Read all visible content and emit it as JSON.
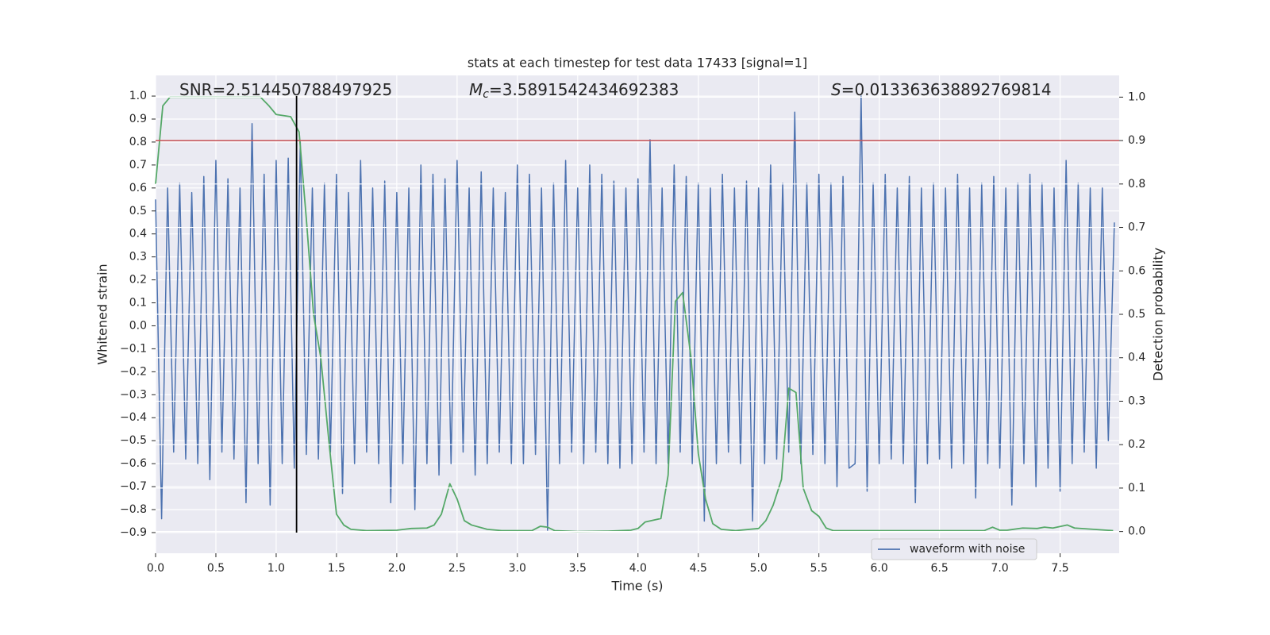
{
  "chart_data": {
    "type": "line",
    "title": "stats at each timestep for test data 17433 [signal=1]",
    "xlabel": "Time (s)",
    "ylabel": "Whitened strain",
    "y2label": "Detection probability",
    "annotations": [
      {
        "text": "SNR=2.514450788497925"
      },
      {
        "symbol": "M",
        "subscript": "c",
        "text": "=3.5891542434692383"
      },
      {
        "symbol": "S",
        "text": "=0.013363638892769814"
      }
    ],
    "background": "#eaeaf2",
    "grid": true,
    "legend": "lower right",
    "xlim": [
      0,
      7.99
    ],
    "ylim": [
      -0.99,
      1.09
    ],
    "y2lim": [
      -0.05,
      1.05
    ],
    "xticks": [
      {
        "value": 0,
        "label": "0.0"
      },
      {
        "value": 0.5,
        "label": "0.5"
      },
      {
        "value": 1,
        "label": "1.0"
      },
      {
        "value": 1.5,
        "label": "1.5"
      },
      {
        "value": 2,
        "label": "2.0"
      },
      {
        "value": 2.5,
        "label": "2.5"
      },
      {
        "value": 3,
        "label": "3.0"
      },
      {
        "value": 3.5,
        "label": "3.5"
      },
      {
        "value": 4,
        "label": "4.0"
      },
      {
        "value": 4.5,
        "label": "4.5"
      },
      {
        "value": 5,
        "label": "5.0"
      },
      {
        "value": 5.5,
        "label": "5.5"
      },
      {
        "value": 6,
        "label": "6.0"
      },
      {
        "value": 6.5,
        "label": "6.5"
      },
      {
        "value": 7,
        "label": "7.0"
      },
      {
        "value": 7.5,
        "label": "7.5"
      }
    ],
    "yticks": [
      {
        "value": -0.9,
        "label": "−0.9"
      },
      {
        "value": -0.8,
        "label": "−0.8"
      },
      {
        "value": -0.7,
        "label": "−0.7"
      },
      {
        "value": -0.6,
        "label": "−0.6"
      },
      {
        "value": -0.5,
        "label": "−0.5"
      },
      {
        "value": -0.4,
        "label": "−0.4"
      },
      {
        "value": -0.3,
        "label": "−0.3"
      },
      {
        "value": -0.2,
        "label": "−0.2"
      },
      {
        "value": -0.1,
        "label": "−0.1"
      },
      {
        "value": 0,
        "label": "0.0"
      },
      {
        "value": 0.1,
        "label": "0.1"
      },
      {
        "value": 0.2,
        "label": "0.2"
      },
      {
        "value": 0.3,
        "label": "0.3"
      },
      {
        "value": 0.4,
        "label": "0.4"
      },
      {
        "value": 0.5,
        "label": "0.5"
      },
      {
        "value": 0.6,
        "label": "0.6"
      },
      {
        "value": 0.7,
        "label": "0.7"
      },
      {
        "value": 0.8,
        "label": "0.8"
      },
      {
        "value": 0.9,
        "label": "0.9"
      },
      {
        "value": 1,
        "label": "1.0"
      }
    ],
    "y2ticks": [
      {
        "value": 0,
        "label": "0.0"
      },
      {
        "value": 0.1,
        "label": "0.1"
      },
      {
        "value": 0.2,
        "label": "0.2"
      },
      {
        "value": 0.3,
        "label": "0.3"
      },
      {
        "value": 0.4,
        "label": "0.4"
      },
      {
        "value": 0.5,
        "label": "0.5"
      },
      {
        "value": 0.6,
        "label": "0.6"
      },
      {
        "value": 0.7,
        "label": "0.7"
      },
      {
        "value": 0.8,
        "label": "0.8"
      },
      {
        "value": 0.9,
        "label": "0.9"
      },
      {
        "value": 1,
        "label": "1.0"
      }
    ],
    "hline": {
      "value": 0.9,
      "axis": "y2",
      "color": "#c44e52"
    },
    "vline": {
      "value": 1.169,
      "ymin": -0.9,
      "ymax": 1.0,
      "color": "#000000"
    },
    "series": [
      {
        "name": "waveform with noise",
        "color": "#4c72b0",
        "x": [
          0,
          0.05,
          0.1,
          0.15,
          0.2,
          0.25,
          0.3,
          0.35,
          0.4,
          0.45,
          0.5,
          0.55,
          0.6,
          0.65,
          0.7,
          0.75,
          0.8,
          0.85,
          0.9,
          0.95,
          1,
          1.05,
          1.1,
          1.15,
          1.2,
          1.25,
          1.3,
          1.35,
          1.4,
          1.45,
          1.5,
          1.55,
          1.6,
          1.65,
          1.7,
          1.75,
          1.8,
          1.85,
          1.9,
          1.95,
          2,
          2.05,
          2.1,
          2.15,
          2.2,
          2.25,
          2.3,
          2.35,
          2.4,
          2.45,
          2.5,
          2.55,
          2.6,
          2.65,
          2.7,
          2.75,
          2.8,
          2.85,
          2.9,
          2.95,
          3,
          3.05,
          3.1,
          3.15,
          3.2,
          3.25,
          3.3,
          3.35,
          3.4,
          3.45,
          3.5,
          3.55,
          3.6,
          3.65,
          3.7,
          3.75,
          3.8,
          3.85,
          3.9,
          3.95,
          4,
          4.05,
          4.1,
          4.15,
          4.2,
          4.25,
          4.3,
          4.35,
          4.4,
          4.45,
          4.5,
          4.55,
          4.6,
          4.65,
          4.7,
          4.75,
          4.8,
          4.85,
          4.9,
          4.95,
          5,
          5.05,
          5.1,
          5.15,
          5.2,
          5.25,
          5.3,
          5.35,
          5.4,
          5.45,
          5.5,
          5.55,
          5.6,
          5.65,
          5.7,
          5.75,
          5.8,
          5.85,
          5.9,
          5.95,
          6,
          6.05,
          6.1,
          6.15,
          6.2,
          6.25,
          6.3,
          6.35,
          6.4,
          6.45,
          6.5,
          6.55,
          6.6,
          6.65,
          6.7,
          6.75,
          6.8,
          6.85,
          6.9,
          6.95,
          7,
          7.05,
          7.1,
          7.15,
          7.2,
          7.25,
          7.3,
          7.35,
          7.4,
          7.45,
          7.5,
          7.55,
          7.6,
          7.65,
          7.7,
          7.75,
          7.8,
          7.85,
          7.9,
          7.95
        ],
        "values": [
          0.55,
          -0.84,
          0.6,
          -0.55,
          0.62,
          -0.58,
          0.58,
          -0.6,
          0.65,
          -0.67,
          0.72,
          -0.55,
          0.64,
          -0.58,
          0.6,
          -0.77,
          0.88,
          -0.6,
          0.66,
          -0.78,
          0.72,
          -0.6,
          0.73,
          -0.62,
          0.8,
          -0.56,
          0.6,
          -0.58,
          0.62,
          -0.55,
          0.66,
          -0.73,
          0.58,
          -0.6,
          0.72,
          -0.55,
          0.6,
          -0.6,
          0.63,
          -0.77,
          0.58,
          -0.6,
          0.6,
          -0.8,
          0.7,
          -0.6,
          0.66,
          -0.65,
          0.64,
          -0.6,
          0.72,
          -0.55,
          0.6,
          -0.65,
          0.67,
          -0.6,
          0.6,
          -0.55,
          0.58,
          -0.6,
          0.7,
          -0.6,
          0.66,
          -0.56,
          0.6,
          -0.89,
          0.62,
          -0.6,
          0.72,
          -0.55,
          0.6,
          -0.6,
          0.7,
          -0.55,
          0.66,
          -0.6,
          0.63,
          -0.62,
          0.6,
          -0.6,
          0.64,
          -0.55,
          0.81,
          -0.6,
          0.6,
          -0.6,
          0.7,
          -0.55,
          0.65,
          -0.6,
          0.62,
          -0.85,
          0.6,
          -0.6,
          0.66,
          -0.55,
          0.6,
          -0.6,
          0.63,
          -0.85,
          0.6,
          -0.6,
          0.7,
          -0.58,
          0.62,
          -0.55,
          0.93,
          -0.6,
          0.62,
          -0.56,
          0.66,
          -0.6,
          0.62,
          -0.7,
          0.65,
          -0.62,
          -0.6,
          1.0,
          -0.72,
          0.62,
          -0.6,
          0.66,
          -0.58,
          0.6,
          -0.6,
          0.65,
          -0.77,
          0.6,
          -0.6,
          0.62,
          -0.58,
          0.6,
          -0.62,
          0.66,
          -0.6,
          0.6,
          -0.75,
          0.62,
          -0.6,
          0.65,
          -0.62,
          0.6,
          -0.78,
          0.62,
          -0.6,
          0.66,
          -0.7,
          0.62,
          -0.62,
          0.6,
          -0.72,
          0.72,
          -0.6,
          0.62,
          -0.55,
          0.6,
          -0.62,
          0.6,
          -0.5,
          0.45
        ]
      },
      {
        "color": "#55a868",
        "axis": "y2",
        "x": [
          0,
          0.06,
          0.12,
          0.5,
          0.87,
          0.94,
          1,
          1.12,
          1.19,
          1.25,
          1.31,
          1.37,
          1.44,
          1.5,
          1.56,
          1.62,
          1.75,
          2,
          2.12,
          2.25,
          2.31,
          2.37,
          2.44,
          2.5,
          2.56,
          2.62,
          2.75,
          2.87,
          3,
          3.12,
          3.19,
          3.25,
          3.31,
          3.5,
          3.75,
          3.94,
          4,
          4.06,
          4.19,
          4.25,
          4.31,
          4.37,
          4.44,
          4.5,
          4.56,
          4.62,
          4.69,
          4.81,
          5,
          5.06,
          5.12,
          5.19,
          5.25,
          5.31,
          5.37,
          5.44,
          5.5,
          5.56,
          5.62,
          6,
          6.5,
          6.87,
          6.94,
          7,
          7.06,
          7.19,
          7.31,
          7.37,
          7.44,
          7.56,
          7.62,
          7.94
        ],
        "values": [
          0.8,
          0.98,
          1.0,
          1.0,
          1.0,
          0.98,
          0.96,
          0.955,
          0.92,
          0.72,
          0.5,
          0.4,
          0.2,
          0.04,
          0.015,
          0.005,
          0.002,
          0.003,
          0.007,
          0.008,
          0.015,
          0.04,
          0.11,
          0.075,
          0.025,
          0.015,
          0.005,
          0.002,
          0.002,
          0.002,
          0.012,
          0.01,
          0.002,
          0.0,
          0.001,
          0.003,
          0.007,
          0.022,
          0.03,
          0.13,
          0.53,
          0.55,
          0.4,
          0.18,
          0.075,
          0.018,
          0.005,
          0.002,
          0.007,
          0.025,
          0.06,
          0.12,
          0.33,
          0.32,
          0.1,
          0.048,
          0.035,
          0.008,
          0.002,
          0.002,
          0.002,
          0.002,
          0.01,
          0.003,
          0.003,
          0.008,
          0.007,
          0.01,
          0.008,
          0.015,
          0.008,
          0.002
        ]
      }
    ]
  }
}
